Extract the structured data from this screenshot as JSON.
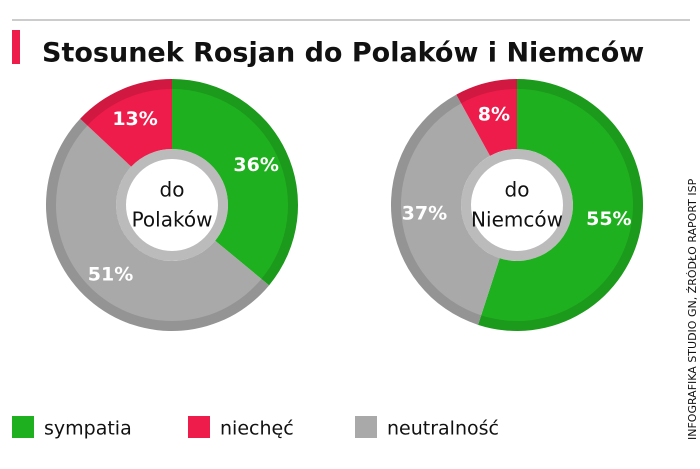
{
  "title": "Stosunek Rosjan do Polaków i Niemców",
  "source": "INFOGRAFIKA STUDIO GN, ŹRÓDŁO RAPORT ISP",
  "chart_data": [
    {
      "type": "pie",
      "center_label": [
        "do",
        "Polaków"
      ],
      "categories": [
        "sympatia",
        "niechęć",
        "neutralność"
      ],
      "colors": [
        "#1fb01f",
        "#ee1c4a",
        "#a9a9a9"
      ],
      "values": [
        36,
        13,
        51
      ],
      "value_labels": [
        "36%",
        "13%",
        "51%"
      ]
    },
    {
      "type": "pie",
      "center_label": [
        "do",
        "Niemców"
      ],
      "categories": [
        "sympatia",
        "niechęć",
        "neutralność"
      ],
      "colors": [
        "#1fb01f",
        "#ee1c4a",
        "#a9a9a9"
      ],
      "values": [
        55,
        8,
        37
      ],
      "value_labels": [
        "55%",
        "8%",
        "37%"
      ]
    }
  ]
}
